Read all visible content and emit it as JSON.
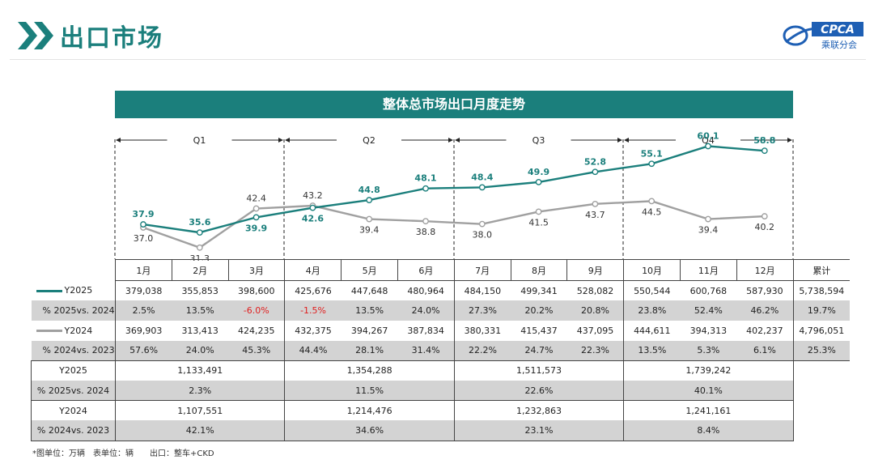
{
  "header": {
    "title": "出口市场",
    "logo_text": "CPCA",
    "logo_subtext": "乘联分会"
  },
  "banner": {
    "title": "整体总市场出口月度走势"
  },
  "chart_data": {
    "type": "line",
    "title": "整体总市场出口月度走势",
    "categories": [
      "1月",
      "2月",
      "3月",
      "4月",
      "5月",
      "6月",
      "7月",
      "8月",
      "9月",
      "10月",
      "11月",
      "12月"
    ],
    "quarters": [
      "Q1",
      "Q2",
      "Q3",
      "Q4"
    ],
    "series": [
      {
        "name": "Y2025",
        "color": "#1b7f7c",
        "values": [
          37.9,
          35.6,
          39.9,
          42.6,
          44.8,
          48.1,
          48.4,
          49.9,
          52.8,
          55.1,
          60.1,
          58.8
        ]
      },
      {
        "name": "Y2024",
        "color": "#a0a0a0",
        "values": [
          37.0,
          31.3,
          42.4,
          43.2,
          39.4,
          38.8,
          38.0,
          41.5,
          43.7,
          44.5,
          39.4,
          40.2
        ]
      }
    ],
    "unit": "万辆"
  },
  "table": {
    "header_months": [
      "1月",
      "2月",
      "3月",
      "4月",
      "5月",
      "6月",
      "7月",
      "8月",
      "9月",
      "10月",
      "11月",
      "12月"
    ],
    "cum_label": "累计",
    "monthly_rows": [
      {
        "label": "Y2025",
        "swatch": "#1b7f7c",
        "values": [
          "379,038",
          "355,853",
          "398,600",
          "425,676",
          "447,648",
          "480,964",
          "484,150",
          "499,341",
          "528,082",
          "550,544",
          "600,768",
          "587,930"
        ],
        "cum": "5,738,594"
      },
      {
        "label": "% 2025vs. 2024",
        "values": [
          "2.5%",
          "13.5%",
          "-6.0%",
          "-1.5%",
          "13.5%",
          "24.0%",
          "27.3%",
          "20.2%",
          "20.8%",
          "23.8%",
          "52.4%",
          "46.2%"
        ],
        "cum": "19.7%"
      },
      {
        "label": "Y2024",
        "swatch": "#a0a0a0",
        "values": [
          "369,903",
          "313,413",
          "424,235",
          "432,375",
          "394,267",
          "387,834",
          "380,331",
          "415,437",
          "437,095",
          "444,611",
          "394,313",
          "402,237"
        ],
        "cum": "4,796,051"
      },
      {
        "label": "% 2024vs. 2023",
        "values": [
          "57.6%",
          "24.0%",
          "45.3%",
          "44.4%",
          "28.1%",
          "31.4%",
          "22.2%",
          "24.7%",
          "22.3%",
          "13.5%",
          "5.3%",
          "6.1%"
        ],
        "cum": "25.3%"
      }
    ],
    "quarter_rows": [
      {
        "label": "Y2025",
        "values": [
          "1,133,491",
          "1,354,288",
          "1,511,573",
          "1,739,242"
        ]
      },
      {
        "label": "% 2025vs. 2024",
        "values": [
          "2.3%",
          "11.5%",
          "22.6%",
          "40.1%"
        ]
      },
      {
        "label": "Y2024",
        "values": [
          "1,107,551",
          "1,214,476",
          "1,232,863",
          "1,241,161"
        ]
      },
      {
        "label": "% 2024vs. 2023",
        "values": [
          "42.1%",
          "34.6%",
          "23.1%",
          "8.4%"
        ]
      }
    ]
  },
  "footnote": "*图单位：万辆　表单位：辆　　出口：整车+CKD"
}
